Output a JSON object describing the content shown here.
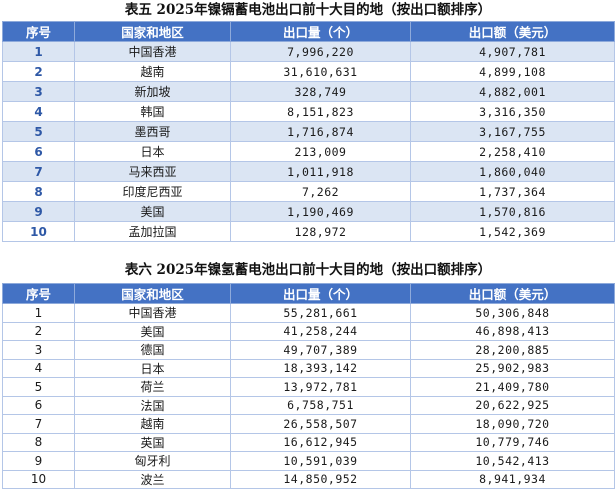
{
  "table1": {
    "caption": "表五 2025年镍镉蓄电池出口前十大目的地（按出口额排序）",
    "headers": [
      "序号",
      "国家和地区",
      "出口量（个）",
      "出口额（美元）"
    ],
    "rows": [
      [
        "1",
        "中国香港",
        "7,996,220",
        "4,907,781"
      ],
      [
        "2",
        "越南",
        "31,610,631",
        "4,899,108"
      ],
      [
        "3",
        "新加坡",
        "328,749",
        "4,882,001"
      ],
      [
        "4",
        "韩国",
        "8,151,823",
        "3,316,350"
      ],
      [
        "5",
        "墨西哥",
        "1,716,874",
        "3,167,755"
      ],
      [
        "6",
        "日本",
        "213,009",
        "2,258,410"
      ],
      [
        "7",
        "马来西亚",
        "1,011,918",
        "1,860,040"
      ],
      [
        "8",
        "印度尼西亚",
        "7,262",
        "1,737,364"
      ],
      [
        "9",
        "美国",
        "1,190,469",
        "1,570,816"
      ],
      [
        "10",
        "孟加拉国",
        "128,972",
        "1,542,369"
      ]
    ]
  },
  "table2": {
    "caption": "表六 2025年镍氢蓄电池出口前十大目的地（按出口额排序）",
    "headers": [
      "序号",
      "国家和地区",
      "出口量（个）",
      "出口额（美元）"
    ],
    "rows": [
      [
        "1",
        "中国香港",
        "55,281,661",
        "50,306,848"
      ],
      [
        "2",
        "美国",
        "41,258,244",
        "46,898,413"
      ],
      [
        "3",
        "德国",
        "49,707,389",
        "28,200,885"
      ],
      [
        "4",
        "日本",
        "18,393,142",
        "25,902,983"
      ],
      [
        "5",
        "荷兰",
        "13,972,781",
        "21,409,780"
      ],
      [
        "6",
        "法国",
        "6,758,751",
        "20,622,925"
      ],
      [
        "7",
        "越南",
        "26,558,507",
        "18,090,720"
      ],
      [
        "8",
        "英国",
        "16,612,945",
        "10,779,746"
      ],
      [
        "9",
        "匈牙利",
        "10,591,039",
        "10,542,413"
      ],
      [
        "10",
        "波兰",
        "14,850,952",
        "8,941,934"
      ]
    ]
  }
}
